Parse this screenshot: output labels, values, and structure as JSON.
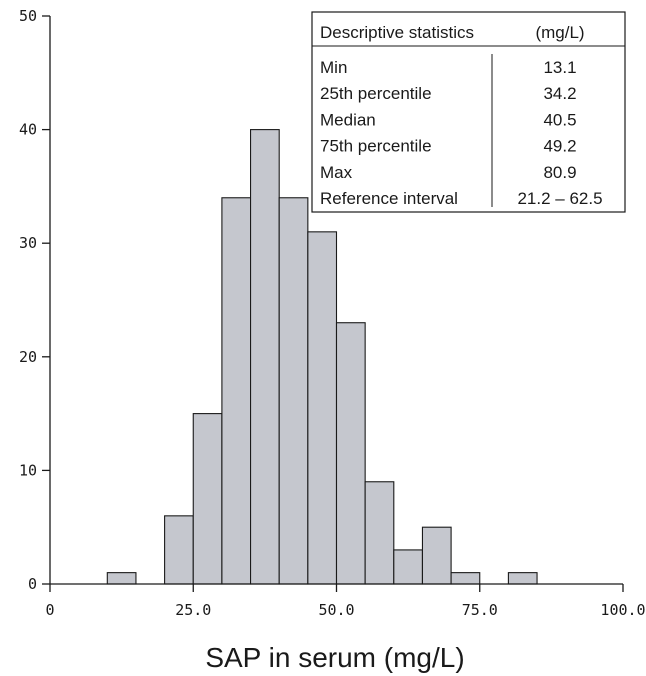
{
  "chart_data": {
    "type": "bar",
    "xlabel": "SAP in serum (mg/L)",
    "ylabel": "",
    "title": "",
    "bin_width": 5,
    "bins": [
      {
        "x_start": 10,
        "value": 1
      },
      {
        "x_start": 20,
        "value": 6
      },
      {
        "x_start": 25,
        "value": 15
      },
      {
        "x_start": 30,
        "value": 34
      },
      {
        "x_start": 35,
        "value": 40
      },
      {
        "x_start": 40,
        "value": 34
      },
      {
        "x_start": 45,
        "value": 31
      },
      {
        "x_start": 50,
        "value": 23
      },
      {
        "x_start": 55,
        "value": 9
      },
      {
        "x_start": 60,
        "value": 3
      },
      {
        "x_start": 65,
        "value": 5
      },
      {
        "x_start": 70,
        "value": 1
      },
      {
        "x_start": 80,
        "value": 1
      }
    ],
    "xlim": [
      0,
      100
    ],
    "ylim": [
      0,
      50
    ],
    "x_ticks": [
      0,
      25,
      50,
      75,
      100
    ],
    "x_tick_labels": [
      "0",
      "25.0",
      "50.0",
      "75.0",
      "100.0"
    ],
    "y_ticks": [
      0,
      10,
      20,
      30,
      40,
      50
    ],
    "y_tick_labels": [
      "0",
      "10",
      "20",
      "30",
      "40",
      "50"
    ],
    "grid": false,
    "bar_color": "#c5c7ce",
    "bar_edge_color": "#1a1a1a"
  },
  "stats_table": {
    "header_label": "Descriptive statistics",
    "header_unit": "(mg/L)",
    "rows": [
      {
        "label": "Min",
        "value": "13.1"
      },
      {
        "label": "25th percentile",
        "value": "34.2"
      },
      {
        "label": "Median",
        "value": "40.5"
      },
      {
        "label": "75th percentile",
        "value": "49.2"
      },
      {
        "label": "Max",
        "value": "80.9"
      },
      {
        "label": "Reference interval",
        "value": "21.2 – 62.5"
      }
    ]
  }
}
